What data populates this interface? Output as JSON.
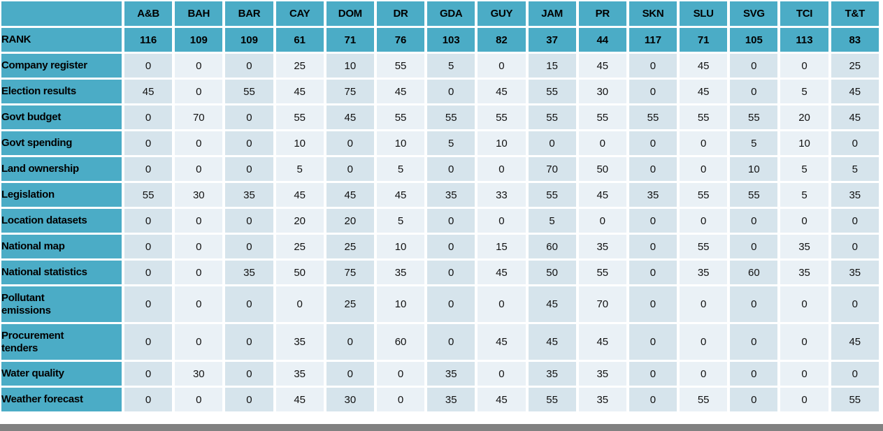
{
  "chart_data": {
    "type": "table",
    "corner_label": "",
    "columns": [
      "A&B",
      "BAH",
      "BAR",
      "CAY",
      "DOM",
      "DR",
      "GDA",
      "GUY",
      "JAM",
      "PR",
      "SKN",
      "SLU",
      "SVG",
      "TCI",
      "T&T"
    ],
    "rank_row": {
      "label": "RANK",
      "values": [
        116,
        109,
        109,
        61,
        71,
        76,
        103,
        82,
        37,
        44,
        117,
        71,
        105,
        113,
        83
      ]
    },
    "rows": [
      {
        "label": "Company register",
        "two_line": false,
        "values": [
          0,
          0,
          0,
          25,
          10,
          55,
          5,
          0,
          15,
          45,
          0,
          45,
          0,
          0,
          25
        ]
      },
      {
        "label": "Election results",
        "two_line": false,
        "values": [
          45,
          0,
          55,
          45,
          75,
          45,
          0,
          45,
          55,
          30,
          0,
          45,
          0,
          5,
          45
        ]
      },
      {
        "label": "Govt budget",
        "two_line": false,
        "values": [
          0,
          70,
          0,
          55,
          45,
          55,
          55,
          55,
          55,
          55,
          55,
          55,
          55,
          20,
          45
        ]
      },
      {
        "label": "Govt spending",
        "two_line": false,
        "values": [
          0,
          0,
          0,
          10,
          0,
          10,
          5,
          10,
          0,
          0,
          0,
          0,
          5,
          10,
          0
        ]
      },
      {
        "label": "Land ownership",
        "two_line": false,
        "values": [
          0,
          0,
          0,
          5,
          0,
          5,
          0,
          0,
          70,
          50,
          0,
          0,
          10,
          5,
          5
        ]
      },
      {
        "label": "Legislation",
        "two_line": false,
        "values": [
          55,
          30,
          35,
          45,
          45,
          45,
          35,
          33,
          55,
          45,
          35,
          55,
          55,
          5,
          35
        ]
      },
      {
        "label": "Location datasets",
        "two_line": false,
        "values": [
          0,
          0,
          0,
          20,
          20,
          5,
          0,
          0,
          5,
          0,
          0,
          0,
          0,
          0,
          0
        ]
      },
      {
        "label": "National map",
        "two_line": false,
        "values": [
          0,
          0,
          0,
          25,
          25,
          10,
          0,
          15,
          60,
          35,
          0,
          55,
          0,
          35,
          0
        ]
      },
      {
        "label": "National statistics",
        "two_line": false,
        "values": [
          0,
          0,
          35,
          50,
          75,
          35,
          0,
          45,
          50,
          55,
          0,
          35,
          60,
          35,
          35
        ]
      },
      {
        "label": "Pollutant emissions",
        "two_line": true,
        "values": [
          0,
          0,
          0,
          0,
          25,
          10,
          0,
          0,
          45,
          70,
          0,
          0,
          0,
          0,
          0
        ]
      },
      {
        "label": "Procurement tenders",
        "two_line": true,
        "values": [
          0,
          0,
          0,
          35,
          0,
          60,
          0,
          45,
          45,
          45,
          0,
          0,
          0,
          0,
          45
        ]
      },
      {
        "label": "Water quality",
        "two_line": false,
        "values": [
          0,
          30,
          0,
          35,
          0,
          0,
          35,
          0,
          35,
          35,
          0,
          0,
          0,
          0,
          0
        ]
      },
      {
        "label": "Weather forecast",
        "two_line": false,
        "values": [
          0,
          0,
          0,
          45,
          30,
          0,
          35,
          45,
          55,
          35,
          0,
          55,
          0,
          0,
          55
        ]
      }
    ],
    "title": "",
    "legend": "none",
    "layout_hints": {
      "column_striping": "odd data columns darker, even lighter",
      "grid": "white gaps between cells"
    }
  },
  "colors": {
    "header_teal": "#4BACC6",
    "stripe_dark": "#D6E4EC",
    "stripe_light": "#EAF1F6",
    "text": "#000000",
    "bottom_bar_gray": "#818181",
    "background": "#FFFFFF"
  }
}
